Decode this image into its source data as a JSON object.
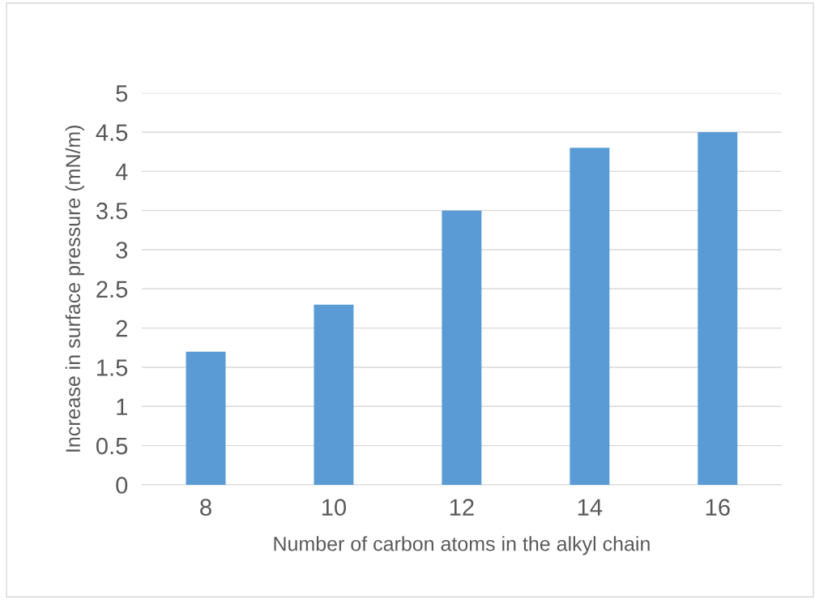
{
  "chart_data": {
    "type": "bar",
    "xlabel": "Number of carbon atoms in the alkyl chain",
    "ylabel": "Increase in surface pressure (mN/m)",
    "categories": [
      "8",
      "10",
      "12",
      "14",
      "16"
    ],
    "values": [
      1.7,
      2.3,
      3.5,
      4.3,
      4.5
    ],
    "color": "#5b9bd5",
    "ylim": [
      0,
      5
    ],
    "yticks": [
      0,
      0.5,
      1,
      1.5,
      2,
      2.5,
      3,
      3.5,
      4,
      4.5,
      5
    ],
    "grid": "y"
  }
}
